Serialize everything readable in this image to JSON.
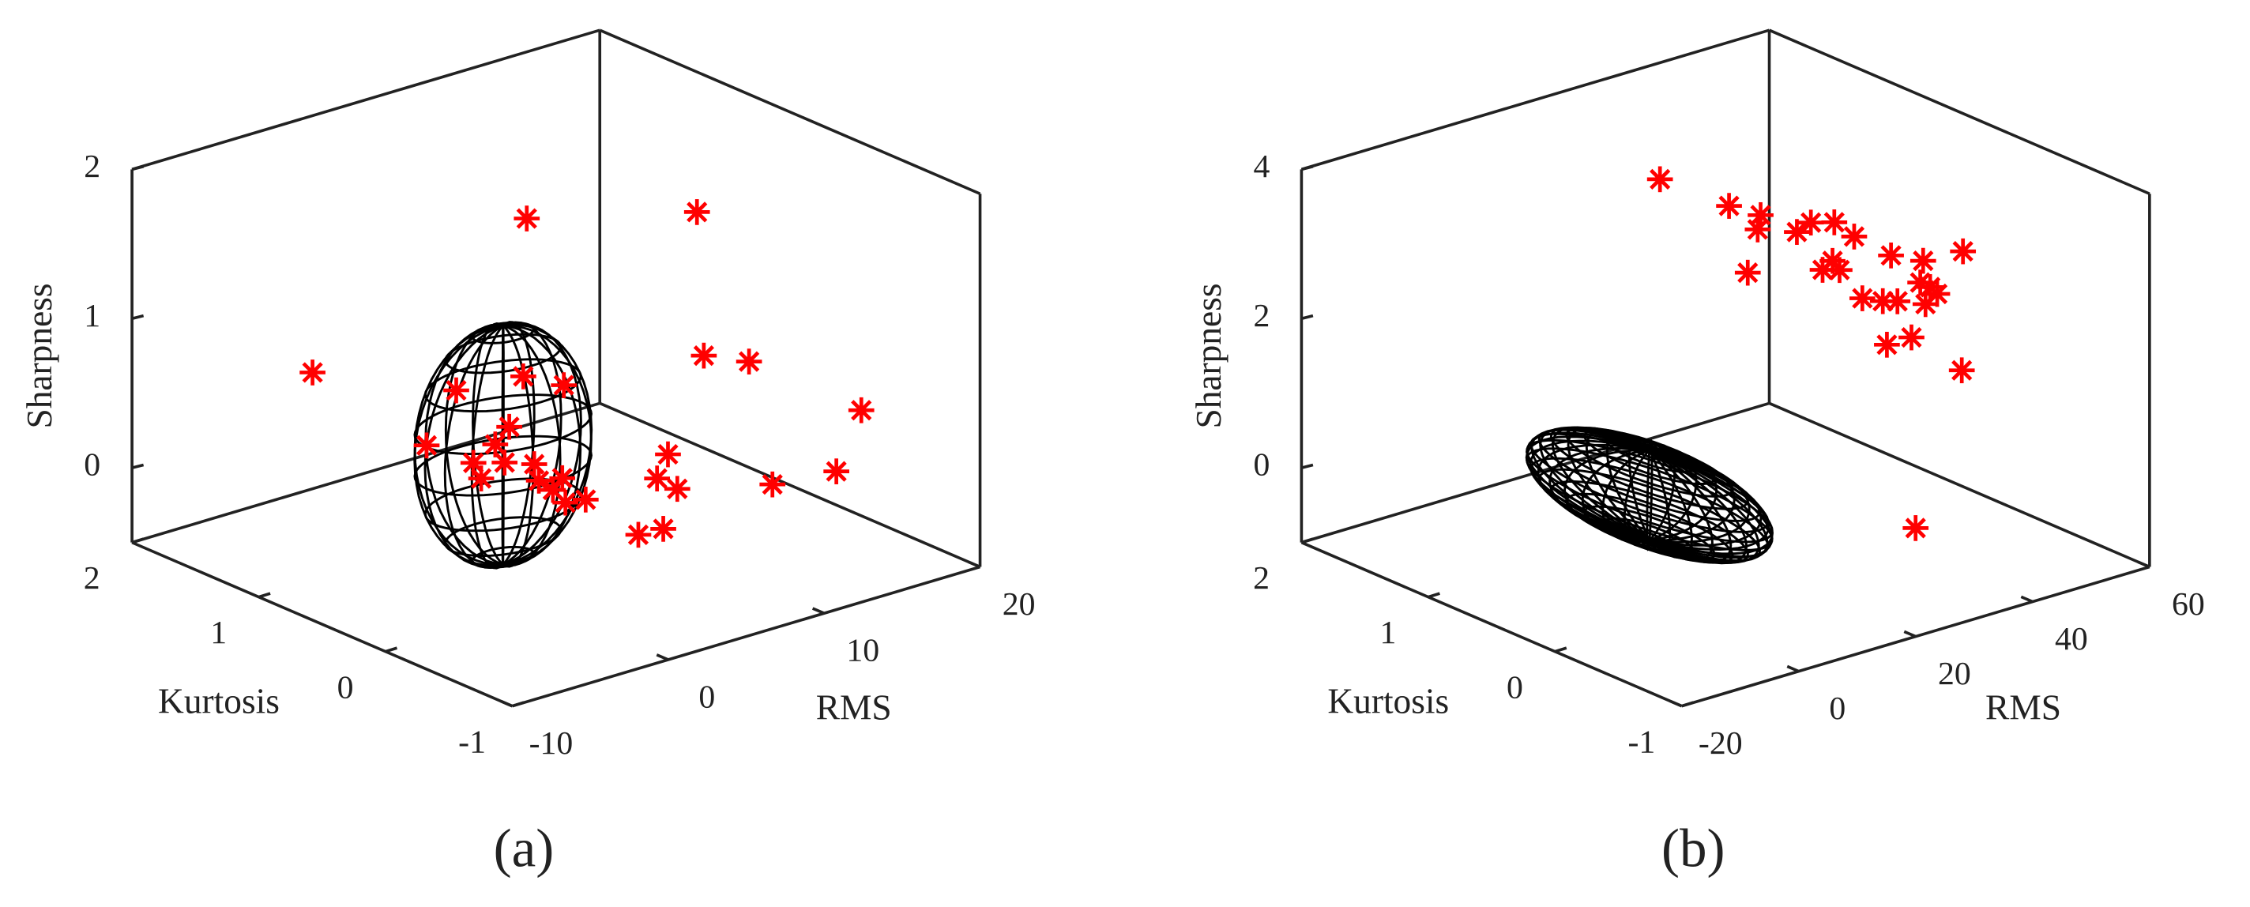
{
  "chart_data": [
    {
      "type": "scatter3d",
      "panel_label": "(a)",
      "xlabel": "RMS",
      "ylabel": "Kurtosis",
      "zlabel": "Sharpness",
      "color": "#ff0000",
      "marker": "*",
      "x": [
        8.0,
        11.6,
        -3.3,
        9.6,
        12.5,
        19.7,
        18.1,
        14.0,
        7.3,
        6.6,
        7.9,
        5.4,
        7.0,
        -3.3,
        2.0,
        -0.3,
        0.2,
        1.7,
        3.6,
        3.9,
        4.8,
        5.4,
        5.6,
        6.9,
        -1.4,
        5.5,
        2.9,
        1.1
      ],
      "y": [
        1.1,
        0.2,
        1.4,
        -0.1,
        -0.1,
        -0.1,
        -0.1,
        -0.1,
        -0.1,
        -0.1,
        -0.1,
        -0.1,
        -0.1,
        0.5,
        0.5,
        0.5,
        0.5,
        0.5,
        0.5,
        0.5,
        0.5,
        0.5,
        0.5,
        0.5,
        0.5,
        0.5,
        0.5,
        0.5
      ],
      "z": [
        1.44,
        1.7,
        0.65,
        0.91,
        0.78,
        0.23,
        -0.13,
        -0.09,
        0.32,
        0.18,
        0.07,
        -0.16,
        -0.17,
        0.49,
        0.45,
        0.28,
        0.16,
        0.22,
        0.15,
        0.03,
        -0.06,
        0.0,
        -0.17,
        -0.19,
        0.8,
        0.62,
        0.76,
        0.36
      ],
      "ellipsoid": {
        "center": [
          1.6,
          0.5,
          0.34
        ],
        "radii": [
          5,
          0.35,
          0.8
        ],
        "color": "#000000"
      },
      "xlim": [
        -10,
        20
      ],
      "ylim": [
        -1,
        2
      ],
      "zlim": [
        -0.5,
        2
      ],
      "xticks": [
        -10,
        0,
        10,
        20
      ],
      "yticks": [
        -1,
        0,
        1,
        2
      ],
      "zticks": [
        0,
        1,
        2
      ]
    },
    {
      "type": "scatter3d",
      "panel_label": "(b)",
      "xlabel": "RMS",
      "ylabel": "Kurtosis",
      "zlabel": "Sharpness",
      "color": "#ff0000",
      "marker": "*",
      "x": [
        28.3,
        20.6,
        26.0,
        25.5,
        23.8,
        32.2,
        34.6,
        38.6,
        42.0,
        38.3,
        39.5,
        36.6,
        43.4,
        48.3,
        46.9,
        49.4,
        53.8,
        53.3,
        55.0,
        56.2,
        47.6,
        54.2,
        51.8,
        47.6,
        47.4,
        39.5
      ],
      "y": [
        1.4,
        0.5,
        0.5,
        0.5,
        0.5,
        0.5,
        0.5,
        0.5,
        0.5,
        0.5,
        0.5,
        0.5,
        0.5,
        0.5,
        0.5,
        0.5,
        0.5,
        0.5,
        0.5,
        0.5,
        -0.1,
        0.5,
        0.5,
        0.5,
        -0.1,
        -0.1
      ],
      "z": [
        3.18,
        3.66,
        3.41,
        3.23,
        2.69,
        3.04,
        3.11,
        3.02,
        2.75,
        2.51,
        2.36,
        2.43,
        1.89,
        2.35,
        1.77,
        1.71,
        2.15,
        1.87,
        1.77,
        1.65,
        2.86,
        1.56,
        1.17,
        1.17,
        1.27,
        -0.66
      ],
      "ellipsoid": {
        "center": [
          7,
          0.5,
          0.1
        ],
        "radii": [
          8,
          0.9,
          0.6
        ],
        "color": "#000000"
      },
      "xlim": [
        -20,
        60
      ],
      "ylim": [
        -1,
        2
      ],
      "zlim": [
        -1,
        4
      ],
      "xticks": [
        -20,
        0,
        20,
        40,
        60
      ],
      "yticks": [
        -1,
        0,
        1,
        2
      ],
      "zticks": [
        0,
        2,
        4
      ]
    }
  ]
}
